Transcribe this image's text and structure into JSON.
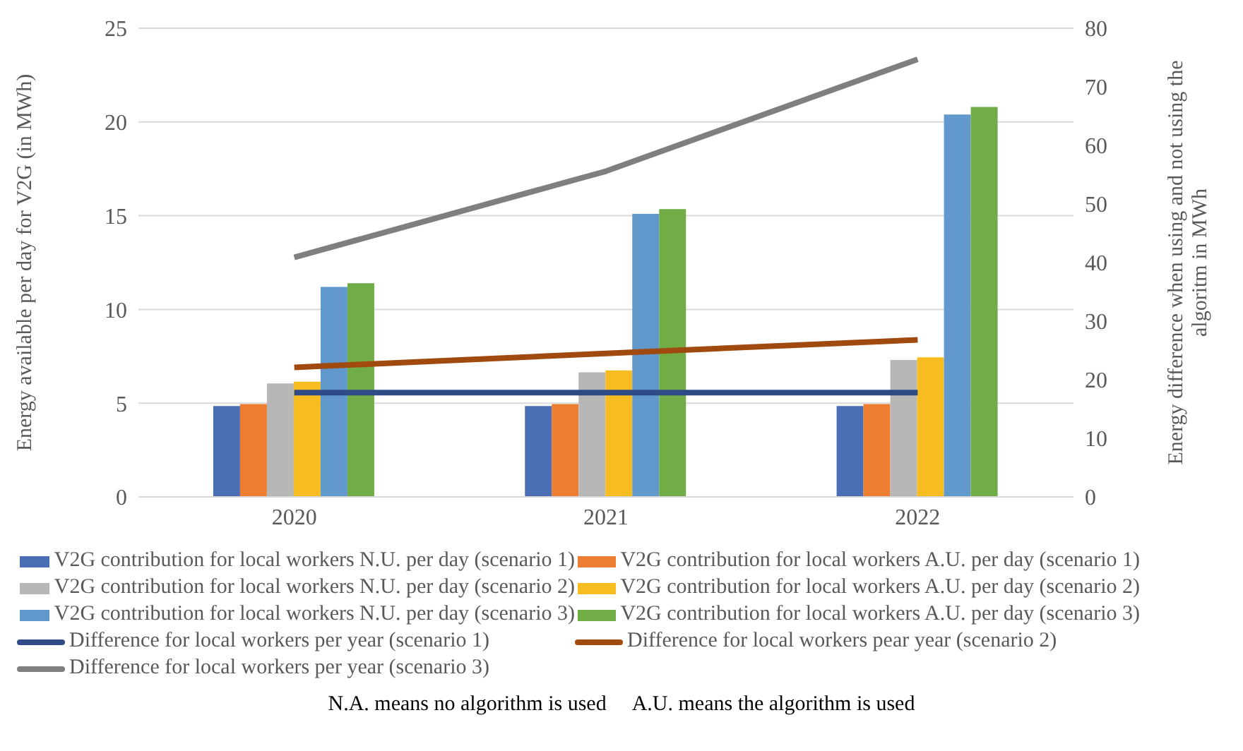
{
  "chart_data": {
    "type": "bar",
    "ylabel": "Energy available per day for V2G (in MWh)",
    "y2label": "Energy difference when using and not using the algoritm in MWh",
    "categories": [
      "2020",
      "2021",
      "2022"
    ],
    "ylim": [
      0,
      25
    ],
    "yticks": [
      0,
      5,
      10,
      15,
      20,
      25
    ],
    "y2lim": [
      0,
      80
    ],
    "y2ticks": [
      0,
      10,
      20,
      30,
      40,
      50,
      60,
      70,
      80
    ],
    "grid": "y",
    "legend": "bottom",
    "series": [
      {
        "name": "V2G contribution for local workers N.U. per day (scenario 1)",
        "color": "#4a6fb5",
        "values": [
          4.85,
          4.85,
          4.85
        ]
      },
      {
        "name": "V2G contribution for local workers A.U. per day (scenario 1)",
        "color": "#ed7d31",
        "values": [
          4.95,
          4.95,
          4.95
        ]
      },
      {
        "name": "V2G contribution for local workers N.U. per day (scenario 2)",
        "color": "#b7b7b7",
        "values": [
          6.05,
          6.65,
          7.3
        ]
      },
      {
        "name": "V2G contribution for local workers A.U. per day (scenario 2)",
        "color": "#f7bc20",
        "values": [
          6.15,
          6.75,
          7.45
        ]
      },
      {
        "name": "V2G contribution for local workers N.U. per day (scenario 3)",
        "color": "#6199cd",
        "values": [
          11.2,
          15.1,
          20.4
        ]
      },
      {
        "name": "V2G contribution for local workers A.U. per day (scenario 3)",
        "color": "#70ad47",
        "values": [
          11.4,
          15.35,
          20.8
        ]
      },
      {
        "name": "Difference for local workers per year (scenario 1)",
        "type": "line",
        "axis": "y2",
        "color": "#2e4a87",
        "values": [
          17.8,
          17.8,
          17.8
        ]
      },
      {
        "name": "Difference for local workers pear year (scenario 2)",
        "type": "line",
        "axis": "y2",
        "color": "#a04a10",
        "values": [
          22.1,
          24.5,
          26.8
        ]
      },
      {
        "name": "Difference for local workers per year (scenario 3)",
        "type": "line",
        "axis": "y2",
        "color": "#7f7f7f",
        "values": [
          40.9,
          55.6,
          74.7
        ]
      }
    ],
    "annotations": [
      "N.A. means no algorithm is used",
      "A.U. means the algorithm is used"
    ]
  }
}
